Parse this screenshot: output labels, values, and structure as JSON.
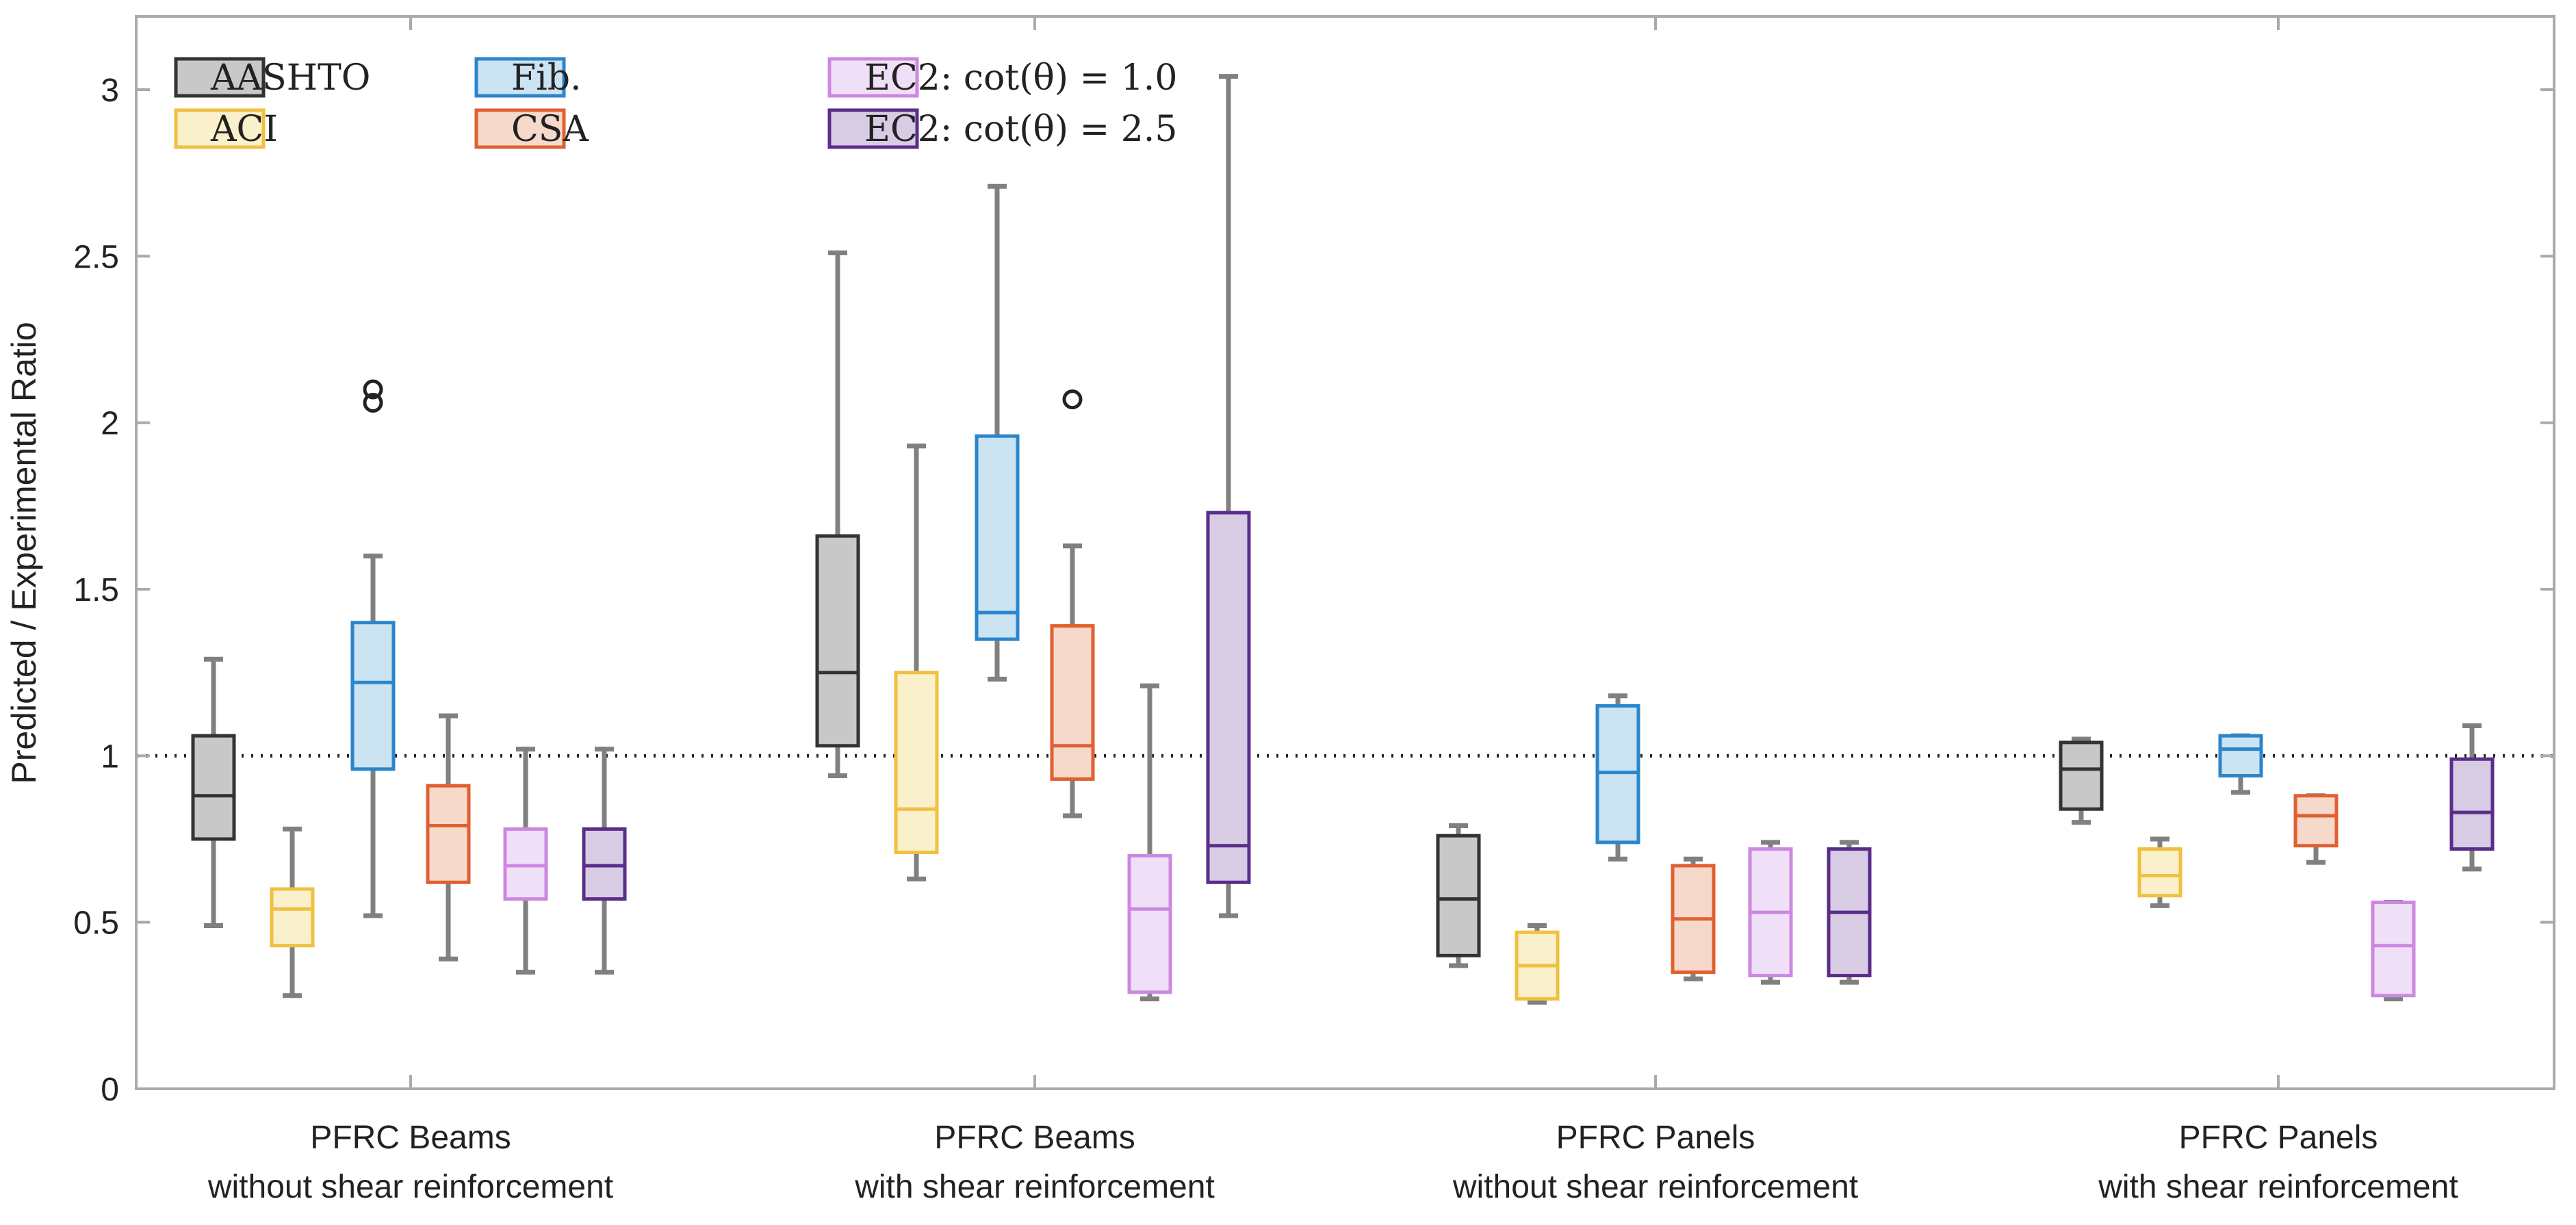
{
  "chart_data": {
    "type": "box",
    "ylabel": "Predicted / Experimental Ratio",
    "xlabel": "",
    "ylim": [
      0,
      3.22
    ],
    "yticks": [
      "0",
      "0.5",
      "1",
      "1.5",
      "2",
      "2.5",
      "3"
    ],
    "ytick_values": [
      0,
      0.5,
      1,
      1.5,
      2,
      2.5,
      3
    ],
    "reference_line": 1,
    "grid": false,
    "legend_position": "top-left",
    "categories": [
      [
        "PFRC Beams",
        "without shear reinforcement"
      ],
      [
        "PFRC Beams",
        "with shear reinforcement"
      ],
      [
        "PFRC Panels",
        "without shear reinforcement"
      ],
      [
        "PFRC Panels",
        "with shear reinforcement"
      ]
    ],
    "series": [
      {
        "name": "AASHTO",
        "edge": "#333333",
        "fill": "#c8c8c8",
        "boxes": [
          {
            "min": 0.49,
            "q1": 0.75,
            "median": 0.88,
            "q3": 1.06,
            "max": 1.29,
            "outliers": []
          },
          {
            "min": 0.94,
            "q1": 1.03,
            "median": 1.25,
            "q3": 1.66,
            "max": 2.51,
            "outliers": []
          },
          {
            "min": 0.37,
            "q1": 0.4,
            "median": 0.57,
            "q3": 0.76,
            "max": 0.79,
            "outliers": []
          },
          {
            "min": 0.8,
            "q1": 0.84,
            "median": 0.96,
            "q3": 1.04,
            "max": 1.05,
            "outliers": []
          }
        ]
      },
      {
        "name": "ACI",
        "edge": "#f0c040",
        "fill": "#fbf0cc",
        "boxes": [
          {
            "min": 0.28,
            "q1": 0.43,
            "median": 0.54,
            "q3": 0.6,
            "max": 0.78,
            "outliers": []
          },
          {
            "min": 0.63,
            "q1": 0.71,
            "median": 0.84,
            "q3": 1.25,
            "max": 1.93,
            "outliers": []
          },
          {
            "min": 0.26,
            "q1": 0.27,
            "median": 0.37,
            "q3": 0.47,
            "max": 0.49,
            "outliers": []
          },
          {
            "min": 0.55,
            "q1": 0.58,
            "median": 0.64,
            "q3": 0.72,
            "max": 0.75,
            "outliers": []
          }
        ]
      },
      {
        "name": "Fib.",
        "edge": "#2a86cc",
        "fill": "#cce3f1",
        "boxes": [
          {
            "min": 0.52,
            "q1": 0.96,
            "median": 1.22,
            "q3": 1.4,
            "max": 1.6,
            "outliers": [
              2.06,
              2.1
            ]
          },
          {
            "min": 1.23,
            "q1": 1.35,
            "median": 1.43,
            "q3": 1.96,
            "max": 2.71,
            "outliers": []
          },
          {
            "min": 0.69,
            "q1": 0.74,
            "median": 0.95,
            "q3": 1.15,
            "max": 1.18,
            "outliers": []
          },
          {
            "min": 0.89,
            "q1": 0.94,
            "median": 1.02,
            "q3": 1.06,
            "max": 1.06,
            "outliers": []
          }
        ]
      },
      {
        "name": "CSA",
        "edge": "#e06030",
        "fill": "#f7d9cc",
        "boxes": [
          {
            "min": 0.39,
            "q1": 0.62,
            "median": 0.79,
            "q3": 0.91,
            "max": 1.12,
            "outliers": []
          },
          {
            "min": 0.82,
            "q1": 0.93,
            "median": 1.03,
            "q3": 1.39,
            "max": 1.63,
            "outliers": [
              2.07
            ]
          },
          {
            "min": 0.33,
            "q1": 0.35,
            "median": 0.51,
            "q3": 0.67,
            "max": 0.69,
            "outliers": []
          },
          {
            "min": 0.68,
            "q1": 0.73,
            "median": 0.82,
            "q3": 0.88,
            "max": 0.88,
            "outliers": []
          }
        ]
      },
      {
        "name": "EC2: cot(θ) = 1.0",
        "edge": "#cc88e0",
        "fill": "#f0e0f7",
        "boxes": [
          {
            "min": 0.35,
            "q1": 0.57,
            "median": 0.67,
            "q3": 0.78,
            "max": 1.02,
            "outliers": []
          },
          {
            "min": 0.27,
            "q1": 0.29,
            "median": 0.54,
            "q3": 0.7,
            "max": 1.21,
            "outliers": []
          },
          {
            "min": 0.32,
            "q1": 0.34,
            "median": 0.53,
            "q3": 0.72,
            "max": 0.74,
            "outliers": []
          },
          {
            "min": 0.27,
            "q1": 0.28,
            "median": 0.43,
            "q3": 0.56,
            "max": 0.56,
            "outliers": []
          }
        ]
      },
      {
        "name": "EC2: cot(θ) = 2.5",
        "edge": "#5a2d8a",
        "fill": "#d8cce4",
        "boxes": [
          {
            "min": 0.35,
            "q1": 0.57,
            "median": 0.67,
            "q3": 0.78,
            "max": 1.02,
            "outliers": []
          },
          {
            "min": 0.52,
            "q1": 0.62,
            "median": 0.73,
            "q3": 1.73,
            "max": 3.04,
            "outliers": []
          },
          {
            "min": 0.32,
            "q1": 0.34,
            "median": 0.53,
            "q3": 0.72,
            "max": 0.74,
            "outliers": []
          },
          {
            "min": 0.66,
            "q1": 0.72,
            "median": 0.83,
            "q3": 0.99,
            "max": 1.09,
            "outliers": []
          }
        ]
      }
    ],
    "whisker_color": "#808080"
  }
}
